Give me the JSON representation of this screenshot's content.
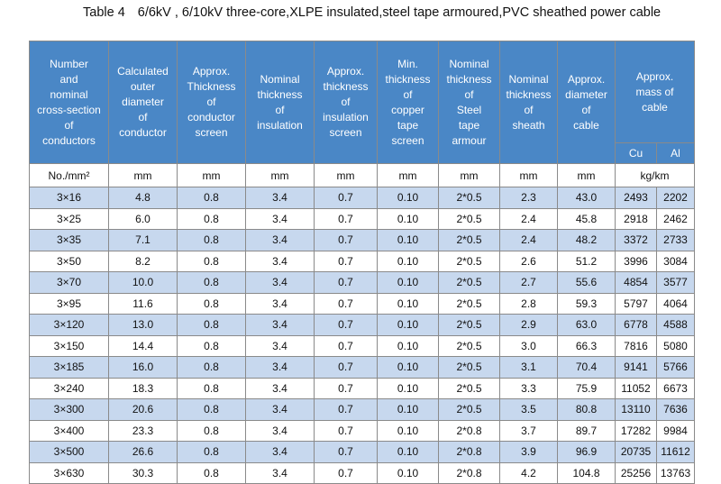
{
  "title": {
    "label": "Table 4",
    "text": "6/6kV , 6/10kV three-core,XLPE insulated,steel tape armoured,PVC sheathed power cable"
  },
  "headers": [
    "Number\nand\nnominal\ncross-section\nof\nconductors",
    "Calculated\nouter\ndiameter\nof\nconductor",
    "Approx.\nThickness\nof\nconductor\nscreen",
    "Nominal\nthickness\nof\ninsulation",
    "Approx.\nthickness\nof\ninsulation\nscreen",
    "Min.\nthickness\nof\ncopper\ntape\nscreen",
    "Nominal\nthickness\nof\nSteel\ntape\narmour",
    "Nominal\nthickness\nof\nsheath",
    "Approx.\ndiameter\nof\ncable",
    "Approx.\nmass of\ncable"
  ],
  "mass_sub": [
    "Cu",
    "Al"
  ],
  "units": [
    "No./mm²",
    "mm",
    "mm",
    "mm",
    "mm",
    "mm",
    "mm",
    "mm",
    "mm",
    "kg/km"
  ],
  "rows": [
    [
      "3×16",
      "4.8",
      "0.8",
      "3.4",
      "0.7",
      "0.10",
      "2*0.5",
      "2.3",
      "43.0",
      "2493",
      "2202"
    ],
    [
      "3×25",
      "6.0",
      "0.8",
      "3.4",
      "0.7",
      "0.10",
      "2*0.5",
      "2.4",
      "45.8",
      "2918",
      "2462"
    ],
    [
      "3×35",
      "7.1",
      "0.8",
      "3.4",
      "0.7",
      "0.10",
      "2*0.5",
      "2.4",
      "48.2",
      "3372",
      "2733"
    ],
    [
      "3×50",
      "8.2",
      "0.8",
      "3.4",
      "0.7",
      "0.10",
      "2*0.5",
      "2.6",
      "51.2",
      "3996",
      "3084"
    ],
    [
      "3×70",
      "10.0",
      "0.8",
      "3.4",
      "0.7",
      "0.10",
      "2*0.5",
      "2.7",
      "55.6",
      "4854",
      "3577"
    ],
    [
      "3×95",
      "11.6",
      "0.8",
      "3.4",
      "0.7",
      "0.10",
      "2*0.5",
      "2.8",
      "59.3",
      "5797",
      "4064"
    ],
    [
      "3×120",
      "13.0",
      "0.8",
      "3.4",
      "0.7",
      "0.10",
      "2*0.5",
      "2.9",
      "63.0",
      "6778",
      "4588"
    ],
    [
      "3×150",
      "14.4",
      "0.8",
      "3.4",
      "0.7",
      "0.10",
      "2*0.5",
      "3.0",
      "66.3",
      "7816",
      "5080"
    ],
    [
      "3×185",
      "16.0",
      "0.8",
      "3.4",
      "0.7",
      "0.10",
      "2*0.5",
      "3.1",
      "70.4",
      "9141",
      "5766"
    ],
    [
      "3×240",
      "18.3",
      "0.8",
      "3.4",
      "0.7",
      "0.10",
      "2*0.5",
      "3.3",
      "75.9",
      "11052",
      "6673"
    ],
    [
      "3×300",
      "20.6",
      "0.8",
      "3.4",
      "0.7",
      "0.10",
      "2*0.5",
      "3.5",
      "80.8",
      "13110",
      "7636"
    ],
    [
      "3×400",
      "23.3",
      "0.8",
      "3.4",
      "0.7",
      "0.10",
      "2*0.8",
      "3.7",
      "89.7",
      "17282",
      "9984"
    ],
    [
      "3×500",
      "26.6",
      "0.8",
      "3.4",
      "0.7",
      "0.10",
      "2*0.8",
      "3.9",
      "96.9",
      "20735",
      "11612"
    ],
    [
      "3×630",
      "30.3",
      "0.8",
      "3.4",
      "0.7",
      "0.10",
      "2*0.8",
      "4.2",
      "104.8",
      "25256",
      "13763"
    ]
  ],
  "colors": {
    "header_bg": "#4a87c6",
    "header_text": "#ffffff",
    "stripe": "#c7d8ee",
    "border": "#8a8a8a"
  }
}
